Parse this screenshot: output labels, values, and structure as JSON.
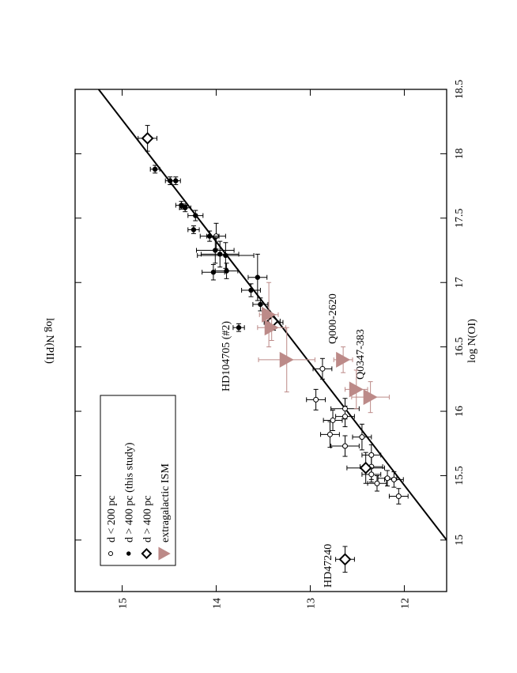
{
  "chart_data": {
    "type": "scatter",
    "x_label": "log N(OI)",
    "y_label": "log N(PII)",
    "xlim": [
      14.6,
      18.5
    ],
    "ylim": [
      11.55,
      15.5
    ],
    "xticks": [
      15,
      15.5,
      16,
      16.5,
      17,
      17.5,
      18,
      18.5
    ],
    "yticks": [
      12,
      13,
      14,
      15
    ],
    "legend": "upper left",
    "fit_line": {
      "x": [
        15,
        18.5
      ],
      "y": [
        11.55,
        15.25
      ],
      "color": "#000000"
    },
    "series": [
      {
        "name": "d < 200 pc",
        "marker": "open-circle",
        "color": "#000000",
        "x": [
          17.36,
          16.69,
          16.33,
          16.09,
          15.93,
          15.82,
          16.02,
          15.96,
          15.73,
          15.8,
          15.66,
          15.51,
          15.44,
          15.48,
          15.47,
          15.34,
          15.57
        ],
        "y": [
          14.0,
          13.39,
          12.87,
          12.94,
          12.76,
          12.79,
          12.63,
          12.63,
          12.63,
          12.45,
          12.35,
          12.35,
          12.29,
          12.18,
          12.11,
          12.06,
          12.35
        ],
        "xerr": [
          0.1,
          0.06,
          0.08,
          0.08,
          0.08,
          0.1,
          0.08,
          0.08,
          0.08,
          0.1,
          0.08,
          0.06,
          0.06,
          0.06,
          0.06,
          0.06,
          0.1
        ],
        "yerr": [
          0.1,
          0.1,
          0.1,
          0.1,
          0.1,
          0.1,
          0.15,
          0.1,
          0.15,
          0.1,
          0.1,
          0.1,
          0.1,
          0.1,
          0.1,
          0.1,
          0.12
        ]
      },
      {
        "name": "d > 400 pc (this study)",
        "marker": "filled-circle",
        "color": "#000000",
        "x": [
          17.88,
          17.79,
          17.79,
          17.6,
          17.58,
          17.52,
          17.41,
          17.36,
          17.25,
          17.22,
          17.21,
          17.08,
          17.09,
          17.04,
          16.94,
          16.83,
          16.65
        ],
        "y": [
          14.65,
          14.49,
          14.43,
          14.37,
          14.33,
          14.22,
          14.24,
          14.07,
          14.01,
          13.96,
          13.9,
          14.03,
          13.89,
          13.56,
          13.63,
          13.53,
          13.76
        ],
        "xerr": [
          0.03,
          0.03,
          0.03,
          0.03,
          0.03,
          0.04,
          0.03,
          0.04,
          0.1,
          0.1,
          0.1,
          0.06,
          0.06,
          0.18,
          0.05,
          0.05,
          0.03
        ],
        "yerr": [
          0.05,
          0.05,
          0.05,
          0.06,
          0.06,
          0.08,
          0.06,
          0.1,
          0.2,
          0.2,
          0.3,
          0.12,
          0.12,
          0.1,
          0.1,
          0.08,
          0.06
        ]
      },
      {
        "name": "d > 400 pc",
        "marker": "diamond",
        "color": "#000000",
        "x": [
          18.12,
          14.85,
          15.56,
          16.7
        ],
        "y": [
          14.73,
          12.63,
          12.41,
          13.4
        ],
        "xerr": [
          0.1,
          0.1,
          0.12,
          0.05
        ],
        "yerr": [
          0.1,
          0.1,
          0.2,
          0.08
        ]
      },
      {
        "name": "extragalactic ISM",
        "marker": "triangle",
        "color": "#bc8a88",
        "x": [
          16.75,
          16.65,
          16.4,
          16.4,
          16.17,
          16.11
        ],
        "y": [
          13.44,
          13.41,
          13.25,
          12.65,
          12.51,
          12.36
        ],
        "xerr": [
          0.25,
          0.1,
          0.25,
          0.1,
          0.15,
          0.12
        ],
        "yerr": [
          0.1,
          0.15,
          0.3,
          0.1,
          0.12,
          0.2
        ]
      }
    ],
    "annotations": [
      "HD104705 (#2)",
      "Q000-2620",
      "Q0347-383",
      "HD47240"
    ]
  }
}
